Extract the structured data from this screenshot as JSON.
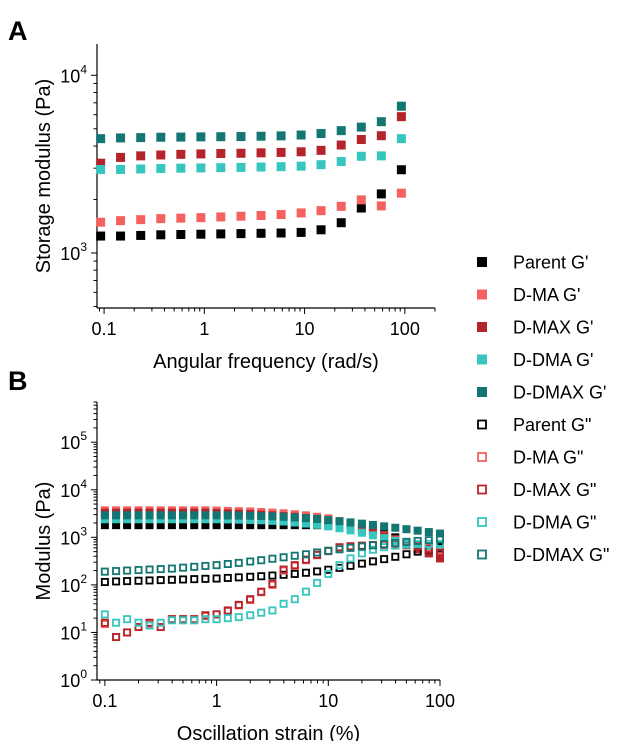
{
  "legend": [
    {
      "name": "Parent G'",
      "color": "#000000",
      "filled": true
    },
    {
      "name": "D-MA G'",
      "color": "#f4615f",
      "filled": true
    },
    {
      "name": "D-MAX G'",
      "color": "#b5242a",
      "filled": true
    },
    {
      "name": "D-DMA G'",
      "color": "#37c6bf",
      "filled": true
    },
    {
      "name": "D-DMAX G'",
      "color": "#137672",
      "filled": true
    },
    {
      "name": "Parent G\"",
      "color": "#000000",
      "filled": false
    },
    {
      "name": "D-MA G\"",
      "color": "#f4615f",
      "filled": false
    },
    {
      "name": "D-MAX G\"",
      "color": "#b5242a",
      "filled": false
    },
    {
      "name": "D-DMA G\"",
      "color": "#37c6bf",
      "filled": false
    },
    {
      "name": "D-DMAX G\"",
      "color": "#137672",
      "filled": false
    }
  ],
  "chart_data": [
    {
      "panel": "A",
      "type": "scatter",
      "xlabel": "Angular frequency (rad/s)",
      "ylabel": "Storage modulus (Pa)",
      "xscale": "log",
      "yscale": "log",
      "xlim": [
        0.085,
        200
      ],
      "ylim": [
        490,
        15000
      ],
      "xticks": [
        0.1,
        1,
        10,
        100
      ],
      "xtick_labels": [
        "0.1",
        "1",
        "10",
        "100"
      ],
      "yticks": [
        1000,
        10000
      ],
      "ytick_labels": [
        {
          "base": "10",
          "exp": "3"
        },
        {
          "base": "10",
          "exp": "4"
        }
      ],
      "grid": false,
      "x": [
        0.0924,
        0.146,
        0.232,
        0.368,
        0.583,
        0.924,
        1.46,
        2.32,
        3.68,
        5.83,
        9.24,
        14.6,
        23.2,
        36.8,
        58.3,
        92.4
      ],
      "series": [
        {
          "name": "Parent G'",
          "color": "#000000",
          "filled": true,
          "values": [
            1245,
            1245,
            1255,
            1265,
            1270,
            1275,
            1280,
            1285,
            1290,
            1295,
            1305,
            1350,
            1480,
            1790,
            2150,
            2940
          ]
        },
        {
          "name": "D-MA G'",
          "color": "#f4615f",
          "filled": true,
          "values": [
            1490,
            1520,
            1540,
            1560,
            1570,
            1580,
            1595,
            1610,
            1625,
            1645,
            1680,
            1730,
            1830,
            1990,
            1840,
            2170
          ]
        },
        {
          "name": "D-MAX G'",
          "color": "#b5242a",
          "filled": true,
          "values": [
            3200,
            3450,
            3520,
            3560,
            3590,
            3610,
            3630,
            3640,
            3660,
            3680,
            3710,
            3780,
            4050,
            4350,
            4570,
            5850
          ]
        },
        {
          "name": "D-DMA G'",
          "color": "#37c6bf",
          "filled": true,
          "values": [
            2950,
            2950,
            2970,
            2990,
            3000,
            3010,
            3020,
            3030,
            3045,
            3060,
            3080,
            3140,
            3270,
            3500,
            3520,
            4400
          ]
        },
        {
          "name": "D-DMAX G'",
          "color": "#137672",
          "filled": true,
          "values": [
            4400,
            4440,
            4460,
            4480,
            4490,
            4500,
            4510,
            4520,
            4540,
            4560,
            4610,
            4700,
            4880,
            5110,
            5480,
            6700
          ]
        }
      ]
    },
    {
      "panel": "B",
      "type": "scatter",
      "xlabel": "Oscillation strain (%)",
      "ylabel": "Modulus (Pa)",
      "xscale": "log",
      "yscale": "log",
      "xlim": [
        0.085,
        100
      ],
      "ylim": [
        1,
        700000
      ],
      "xticks": [
        0.1,
        1,
        10,
        100
      ],
      "xtick_labels": [
        "0.1",
        "1",
        "10",
        "100"
      ],
      "yticks": [
        1,
        10,
        100,
        1000,
        10000,
        100000
      ],
      "ytick_labels": [
        {
          "base": "10",
          "exp": "0"
        },
        {
          "base": "10",
          "exp": "1"
        },
        {
          "base": "10",
          "exp": "2"
        },
        {
          "base": "10",
          "exp": "3"
        },
        {
          "base": "10",
          "exp": "4"
        },
        {
          "base": "10",
          "exp": "5"
        }
      ],
      "grid": false,
      "x": [
        0.1,
        0.126,
        0.158,
        0.2,
        0.251,
        0.316,
        0.398,
        0.501,
        0.631,
        0.794,
        1,
        1.26,
        1.58,
        2,
        2.51,
        3.16,
        3.98,
        5.01,
        6.31,
        7.94,
        10,
        12.6,
        15.8,
        20,
        25.1,
        31.6,
        39.8,
        50.1,
        63.1,
        79.4,
        100
      ],
      "series": [
        {
          "name": "Parent G'",
          "color": "#000000",
          "filled": true,
          "values": [
            1800,
            1800,
            1800,
            1800,
            1800,
            1800,
            1800,
            1800,
            1800,
            1800,
            1800,
            1800,
            1800,
            1800,
            1800,
            1800,
            1800,
            1800,
            1800,
            1800,
            1780,
            1750,
            1700,
            1600,
            1450,
            1250,
            1000,
            800,
            620,
            500,
            420
          ]
        },
        {
          "name": "D-MA G'",
          "color": "#f4615f",
          "filled": true,
          "values": [
            3700,
            3700,
            3700,
            3700,
            3700,
            3700,
            3700,
            3700,
            3700,
            3700,
            3650,
            3600,
            3550,
            3500,
            3400,
            3300,
            3200,
            3050,
            2900,
            2700,
            2500,
            2200,
            1900,
            1600,
            1350,
            1100,
            900,
            700,
            560,
            460,
            380
          ]
        },
        {
          "name": "D-MAX G'",
          "color": "#b5242a",
          "filled": true,
          "values": [
            3300,
            3300,
            3300,
            3300,
            3300,
            3300,
            3300,
            3300,
            3300,
            3300,
            3250,
            3200,
            3150,
            3100,
            3000,
            2900,
            2800,
            2700,
            2550,
            2400,
            2200,
            2000,
            1700,
            1450,
            1250,
            1050,
            850,
            700,
            560,
            460,
            360
          ]
        },
        {
          "name": "D-DMA G'",
          "color": "#37c6bf",
          "filled": true,
          "values": [
            2400,
            2400,
            2400,
            2400,
            2400,
            2400,
            2400,
            2400,
            2400,
            2400,
            2400,
            2380,
            2350,
            2320,
            2280,
            2220,
            2150,
            2050,
            1950,
            1830,
            1700,
            1550,
            1400,
            1250,
            1100,
            960,
            840,
            760,
            700,
            660,
            620
          ]
        },
        {
          "name": "D-DMAX G'",
          "color": "#137672",
          "filled": true,
          "values": [
            2900,
            2900,
            2900,
            2900,
            2900,
            2900,
            2900,
            2900,
            2900,
            2900,
            2900,
            2880,
            2860,
            2840,
            2800,
            2760,
            2700,
            2620,
            2530,
            2430,
            2300,
            2180,
            2060,
            1940,
            1820,
            1700,
            1590,
            1480,
            1380,
            1290,
            1200
          ]
        },
        {
          "name": "Parent G\"",
          "color": "#000000",
          "filled": false,
          "values": [
            115,
            118,
            120,
            122,
            124,
            126,
            128,
            130,
            132,
            134,
            136,
            140,
            144,
            148,
            152,
            157,
            163,
            170,
            180,
            192,
            208,
            228,
            252,
            280,
            312,
            348,
            390,
            440,
            500,
            560,
            620
          ]
        },
        {
          "name": "D-MA G\"",
          "color": "#f4615f",
          "filled": false,
          "values": [
            15,
            8,
            10,
            13,
            15,
            13,
            19,
            19,
            19,
            22,
            24,
            28,
            37,
            48,
            70,
            100,
            200,
            250,
            330,
            420,
            510,
            610,
            640,
            660,
            680,
            690,
            690,
            680,
            650,
            600,
            540
          ]
        },
        {
          "name": "D-MAX G\"",
          "color": "#b5242a",
          "filled": false,
          "values": [
            16,
            8,
            10,
            13,
            16,
            13,
            19,
            19,
            19,
            23,
            24,
            29,
            38,
            50,
            72,
            105,
            210,
            260,
            340,
            430,
            520,
            620,
            650,
            670,
            690,
            700,
            690,
            680,
            640,
            570,
            470
          ]
        },
        {
          "name": "D-DMA G\"",
          "color": "#37c6bf",
          "filled": false,
          "values": [
            24,
            16,
            19,
            16,
            14,
            16,
            18,
            18,
            18,
            19,
            19,
            20,
            21,
            23,
            26,
            29,
            40,
            50,
            72,
            110,
            170,
            260,
            360,
            460,
            550,
            620,
            670,
            700,
            720,
            730,
            730
          ]
        },
        {
          "name": "D-DMAX G\"",
          "color": "#137672",
          "filled": false,
          "values": [
            190,
            195,
            200,
            205,
            210,
            215,
            220,
            230,
            240,
            250,
            260,
            275,
            290,
            310,
            330,
            355,
            380,
            410,
            440,
            480,
            520,
            560,
            600,
            640,
            680,
            720,
            760,
            800,
            840,
            870,
            900
          ]
        }
      ]
    }
  ]
}
